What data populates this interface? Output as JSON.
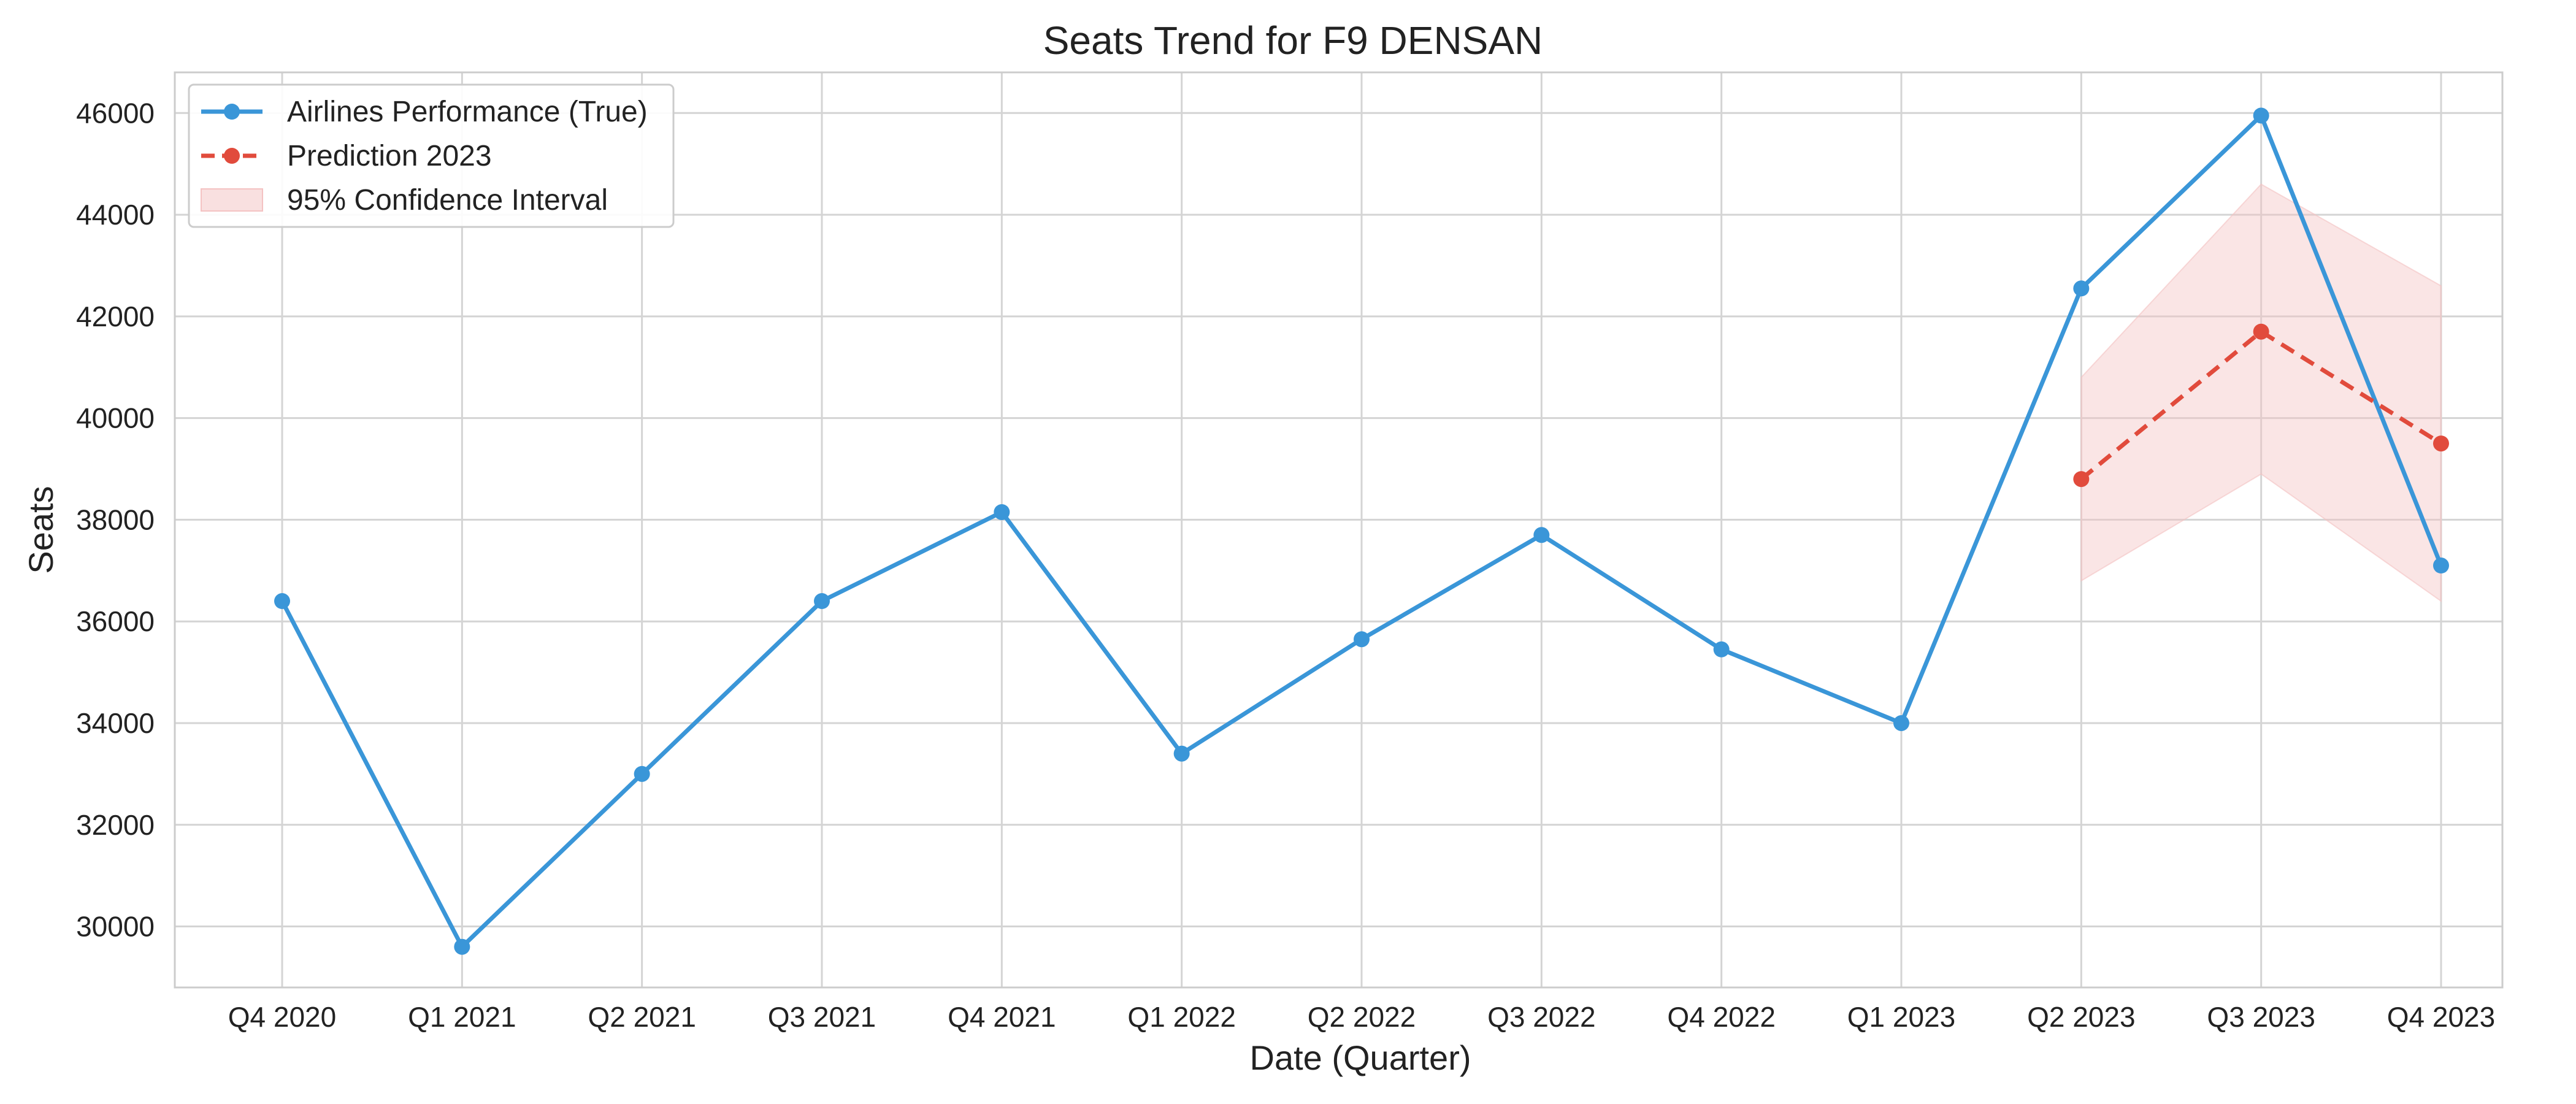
{
  "chart_data": {
    "type": "line",
    "title": "Seats Trend for F9 DENSAN",
    "xlabel": "Date (Quarter)",
    "ylabel": "Seats",
    "categories": [
      "Q4 2020",
      "Q1 2021",
      "Q2 2021",
      "Q3 2021",
      "Q4 2021",
      "Q1 2022",
      "Q2 2022",
      "Q3 2022",
      "Q4 2022",
      "Q1 2023",
      "Q2 2023",
      "Q3 2023",
      "Q4 2023"
    ],
    "ylim": [
      28800,
      46800
    ],
    "yticks": [
      30000,
      32000,
      34000,
      36000,
      38000,
      40000,
      42000,
      44000,
      46000
    ],
    "grid": true,
    "legend_position": "top-left",
    "series": [
      {
        "name": "Airlines Performance (True)",
        "color": "#3a96d8",
        "style": "solid",
        "marker": "circle",
        "values": [
          36400,
          29600,
          33000,
          36400,
          38150,
          33400,
          35650,
          37700,
          35450,
          34000,
          42550,
          45950,
          37100
        ]
      },
      {
        "name": "Prediction 2023",
        "color": "#e14b3c",
        "style": "dashed",
        "marker": "circle",
        "values": [
          null,
          null,
          null,
          null,
          null,
          null,
          null,
          null,
          null,
          null,
          38800,
          41700,
          39500
        ]
      }
    ],
    "confidence_interval": {
      "name": "95% Confidence Interval",
      "color": "#f4c2c2",
      "categories": [
        "Q2 2023",
        "Q3 2023",
        "Q4 2023"
      ],
      "lower": [
        36800,
        38900,
        36400
      ],
      "upper": [
        40800,
        44600,
        42600
      ]
    }
  }
}
